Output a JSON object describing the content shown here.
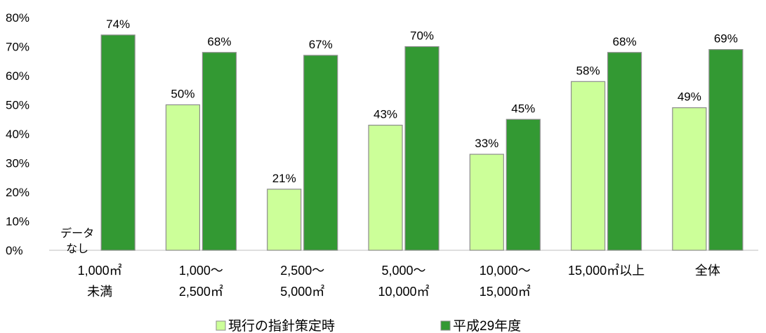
{
  "chart_data": {
    "type": "bar",
    "title": "",
    "xlabel": "",
    "ylabel": "",
    "ylim": [
      0,
      80
    ],
    "yticks": [
      "0%",
      "10%",
      "20%",
      "30%",
      "40%",
      "50%",
      "60%",
      "70%",
      "80%"
    ],
    "grid": false,
    "legend_position": "bottom",
    "categories": [
      [
        "1,000㎡",
        "未満"
      ],
      [
        "1,000～",
        "2,500㎡"
      ],
      [
        "2,500～",
        "5,000㎡"
      ],
      [
        "5,000～",
        "10,000㎡"
      ],
      [
        "10,000～",
        "15,000㎡"
      ],
      [
        "15,000㎡以上"
      ],
      [
        "全体"
      ]
    ],
    "series": [
      {
        "name": "現行の指針策定時",
        "color": "#ccff99",
        "values": [
          null,
          50,
          21,
          43,
          33,
          58,
          49
        ],
        "labels": [
          "",
          "50%",
          "21%",
          "43%",
          "33%",
          "58%",
          "49%"
        ]
      },
      {
        "name": "平成29年度",
        "color": "#339933",
        "values": [
          74,
          68,
          67,
          70,
          45,
          68,
          69
        ],
        "labels": [
          "74%",
          "68%",
          "67%",
          "70%",
          "45%",
          "68%",
          "69%"
        ]
      }
    ],
    "annotations": [
      {
        "category_index": 0,
        "series_index": 0,
        "lines": [
          "データ",
          "なし"
        ]
      }
    ]
  }
}
